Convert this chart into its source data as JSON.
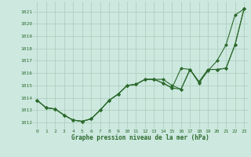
{
  "title": "Graphe pression niveau de la mer (hPa)",
  "background_color": "#cce8df",
  "grid_color": "#aaccbb",
  "line_color": "#2d6a2d",
  "xlim": [
    -0.5,
    23.5
  ],
  "ylim": [
    1011.5,
    1021.8
  ],
  "yticks": [
    1012,
    1013,
    1014,
    1015,
    1016,
    1017,
    1018,
    1019,
    1020,
    1021
  ],
  "xticks": [
    0,
    1,
    2,
    3,
    4,
    5,
    6,
    7,
    8,
    9,
    10,
    11,
    12,
    13,
    14,
    15,
    16,
    17,
    18,
    19,
    20,
    21,
    22,
    23
  ],
  "s1": [
    1013.8,
    1013.2,
    1013.1,
    1012.6,
    1012.2,
    1012.1,
    1012.3,
    1013.0,
    1013.8,
    1014.3,
    1015.0,
    1015.1,
    1015.5,
    1015.5,
    1015.5,
    1015.0,
    1014.7,
    1016.3,
    1015.2,
    1016.2,
    1017.0,
    1018.3,
    1020.7,
    1021.2
  ],
  "s2": [
    1013.8,
    1013.2,
    1013.1,
    1012.6,
    1012.2,
    1012.1,
    1012.3,
    1013.0,
    1013.8,
    1014.3,
    1015.0,
    1015.1,
    1015.5,
    1015.5,
    1015.2,
    1014.8,
    1016.4,
    1016.3,
    1015.3,
    1016.3,
    1016.3,
    1016.4,
    1018.3,
    1021.2
  ],
  "s3": [
    1013.8,
    1013.2,
    1013.1,
    1012.6,
    1012.2,
    1012.1,
    1012.3,
    1013.0,
    1013.8,
    1014.3,
    1015.0,
    1015.1,
    1015.5,
    1015.5,
    1015.2,
    1014.8,
    1014.7,
    1016.3,
    1015.3,
    1016.3,
    1016.3,
    1016.4,
    1018.3,
    1021.2
  ]
}
